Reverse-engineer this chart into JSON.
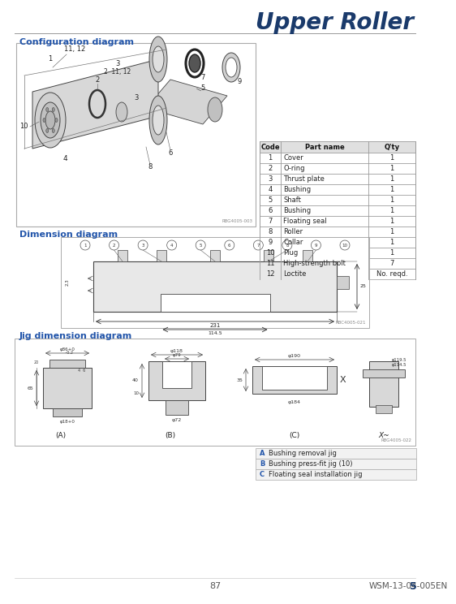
{
  "title": "Upper Roller",
  "title_color": "#1a3a6b",
  "bg_color": "#ffffff",
  "page_num": "87",
  "doc_code": "WSM-13-04-005EN",
  "page_corner": "5",
  "section_label_color": "#2255aa",
  "sections": [
    "Configuration diagram",
    "Dimension diagram",
    "Jig dimension diagram"
  ],
  "parts_table": {
    "headers": [
      "Code",
      "Part name",
      "Q'ty"
    ],
    "rows": [
      [
        "1",
        "Cover",
        "1"
      ],
      [
        "2",
        "O-ring",
        "1"
      ],
      [
        "3",
        "Thrust plate",
        "1"
      ],
      [
        "4",
        "Bushing",
        "1"
      ],
      [
        "5",
        "Shaft",
        "1"
      ],
      [
        "6",
        "Bushing",
        "1"
      ],
      [
        "7",
        "Floating seal",
        "1"
      ],
      [
        "8",
        "Roller",
        "1"
      ],
      [
        "9",
        "Collar",
        "1"
      ],
      [
        "10",
        "Plug",
        "1"
      ],
      [
        "11",
        "High-strength bolt",
        "7"
      ],
      [
        "12",
        "Loctite",
        "No. reqd."
      ]
    ]
  },
  "jig_labels": [
    [
      "A",
      "Bushing removal jig"
    ],
    [
      "B",
      "Bushing press-fit jig (10)"
    ],
    [
      "C",
      "Floating seal installation jig"
    ]
  ],
  "fig_codes": [
    "RBG4005-003",
    "RBC4005-021",
    "RBG4005-022"
  ],
  "table_border_color": "#888888",
  "light_gray": "#e8e8e8",
  "mid_gray": "#cccccc",
  "dark_gray": "#555555"
}
